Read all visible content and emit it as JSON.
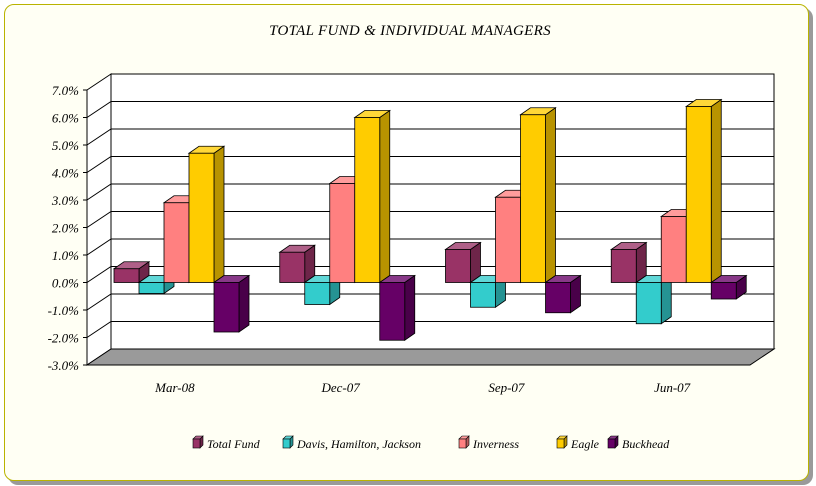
{
  "chart_data": {
    "type": "bar",
    "title": "TOTAL FUND  & INDIVIDUAL MANAGERS",
    "xlabel": "",
    "ylabel": "",
    "categories": [
      "Mar-08",
      "Dec-07",
      "Sep-07",
      "Jun-07"
    ],
    "ylim": [
      -3.0,
      7.0
    ],
    "yticks": [
      "7.0%",
      "6.0%",
      "5.0%",
      "4.0%",
      "3.0%",
      "2.0%",
      "1.0%",
      "0.0%",
      "-1.0%",
      "-2.0%",
      "-3.0%"
    ],
    "grid": true,
    "legend_position": "bottom",
    "series": [
      {
        "name": "Total Fund",
        "values": [
          0.5,
          1.1,
          1.2,
          1.2
        ],
        "color": "#993366"
      },
      {
        "name": "Davis, Hamilton, Jackson",
        "values": [
          -0.4,
          -0.8,
          -0.9,
          -1.5
        ],
        "color": "#33cccc"
      },
      {
        "name": "Inverness",
        "values": [
          2.9,
          3.6,
          3.1,
          2.4
        ],
        "color": "#ff8080"
      },
      {
        "name": "Eagle",
        "values": [
          4.7,
          6.0,
          6.1,
          6.4
        ],
        "color": "#ffcc00"
      },
      {
        "name": "Buckhead",
        "values": [
          -1.8,
          -2.1,
          -1.1,
          -0.6
        ],
        "color": "#660066"
      }
    ]
  }
}
